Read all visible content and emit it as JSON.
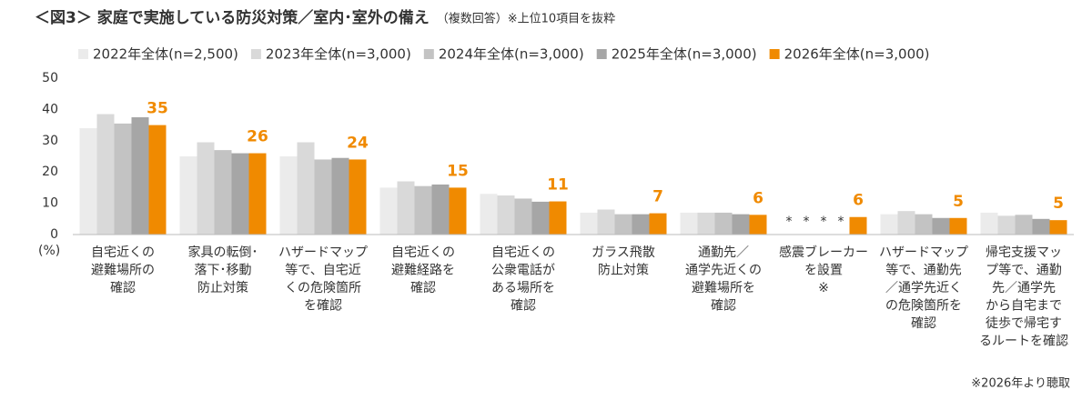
{
  "chart_data": {
    "type": "bar",
    "title": "＜図3＞ 家庭で実施している防災対策／室内･室外の備え",
    "subtitle": "（複数回答）※上位10項目を抜粋",
    "y_unit_label": "(%)",
    "footnote": "※2026年より聴取",
    "categories": [
      [
        "自宅近くの",
        "避難場所の",
        "確認"
      ],
      [
        "家具の転倒･",
        "落下･移動",
        "防止対策"
      ],
      [
        "ハザードマップ",
        "等で、自宅近",
        "くの危険箇所",
        "を確認"
      ],
      [
        "自宅近くの",
        "避難経路を",
        "確認"
      ],
      [
        "自宅近くの",
        "公衆電話が",
        "ある場所を",
        "確認"
      ],
      [
        "ガラス飛散",
        "防止対策"
      ],
      [
        "通勤先／",
        "通学先近くの",
        "避難場所を",
        "確認"
      ],
      [
        "感震ブレーカー",
        "を設置",
        "※"
      ],
      [
        "ハザードマップ",
        "等で、通勤先",
        "／通学先近く",
        "の危険箇所を",
        "確認"
      ],
      [
        "帰宅支援マッ",
        "プ等で、通勤",
        "先／通学先",
        "から自宅まで",
        "徒歩で帰宅す",
        "るルートを確認"
      ]
    ],
    "series": [
      {
        "name": "2022年全体(n=2,500)",
        "color": "#ebebeb",
        "values": [
          34,
          25,
          25,
          15,
          13,
          7,
          7,
          null,
          6.5,
          7
        ],
        "value_labels": [
          null,
          null,
          null,
          null,
          null,
          null,
          null,
          "*",
          null,
          null
        ]
      },
      {
        "name": "2023年全体(n=3,000)",
        "color": "#d9d9d9",
        "values": [
          38.5,
          29.5,
          29.5,
          17,
          12.5,
          8,
          7,
          null,
          7.5,
          6
        ],
        "value_labels": [
          null,
          null,
          null,
          null,
          null,
          null,
          null,
          "*",
          null,
          null
        ]
      },
      {
        "name": "2024年全体(n=3,000)",
        "color": "#c3c3c3",
        "values": [
          35.5,
          27,
          24,
          15.5,
          11.5,
          6.5,
          7,
          null,
          6.5,
          6.3
        ],
        "value_labels": [
          null,
          null,
          null,
          null,
          null,
          null,
          null,
          "*",
          null,
          null
        ]
      },
      {
        "name": "2025年全体(n=3,000)",
        "color": "#a6a6a6",
        "values": [
          37.5,
          26,
          24.5,
          16,
          10.5,
          6.5,
          6.5,
          null,
          5.3,
          5
        ],
        "value_labels": [
          null,
          null,
          null,
          null,
          null,
          null,
          null,
          "*",
          null,
          null
        ]
      },
      {
        "name": "2026年全体(n=3,000)",
        "color": "#f08a00",
        "values": [
          35,
          26,
          24,
          15,
          10.6,
          6.8,
          6.3,
          5.6,
          5.3,
          4.6
        ],
        "value_labels": [
          "35",
          "26",
          "24",
          "15",
          "11",
          "7",
          "6",
          "6",
          "5",
          "5"
        ]
      }
    ],
    "ylim": [
      0,
      50
    ],
    "yticks": [
      0,
      10,
      20,
      30,
      40,
      50
    ],
    "grid": false
  }
}
